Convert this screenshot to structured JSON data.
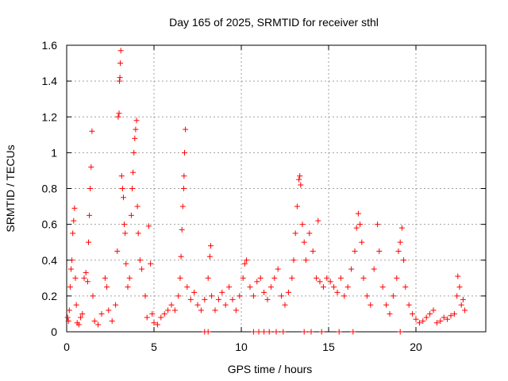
{
  "chart_data": {
    "type": "scatter",
    "title": "Day 165 of 2025, SRMTID for receiver sthl",
    "xlabel": "GPS time / hours",
    "ylabel": "SRMTID / TECUs",
    "xlim": [
      0,
      24
    ],
    "ylim": [
      0,
      1.6
    ],
    "xticks": [
      "0",
      "5",
      "10",
      "15",
      "20"
    ],
    "xtick_values": [
      0,
      5,
      10,
      15,
      20
    ],
    "yticks": [
      "0",
      "0.2",
      "0.4",
      "0.6",
      "0.8",
      "1",
      "1.2",
      "1.4",
      "1.6"
    ],
    "ytick_values": [
      0,
      0.2,
      0.4,
      0.6,
      0.8,
      1.0,
      1.2,
      1.4,
      1.6
    ],
    "grid": true,
    "marker": "+",
    "series": [
      {
        "name": "SRMTID",
        "color": "#ff0000",
        "points": [
          [
            0.05,
            0.08
          ],
          [
            0.1,
            0.06
          ],
          [
            0.15,
            0.12
          ],
          [
            0.2,
            0.25
          ],
          [
            0.25,
            0.35
          ],
          [
            0.3,
            0.4
          ],
          [
            0.35,
            0.55
          ],
          [
            0.4,
            0.62
          ],
          [
            0.45,
            0.69
          ],
          [
            0.5,
            0.3
          ],
          [
            0.55,
            0.15
          ],
          [
            0.6,
            0.05
          ],
          [
            0.7,
            0.04
          ],
          [
            0.8,
            0.08
          ],
          [
            0.9,
            0.1
          ],
          [
            1.0,
            0.3
          ],
          [
            1.1,
            0.33
          ],
          [
            1.2,
            0.28
          ],
          [
            1.25,
            0.5
          ],
          [
            1.3,
            0.65
          ],
          [
            1.35,
            0.8
          ],
          [
            1.4,
            0.92
          ],
          [
            1.45,
            1.12
          ],
          [
            1.5,
            0.2
          ],
          [
            1.6,
            0.06
          ],
          [
            1.8,
            0.04
          ],
          [
            2.0,
            0.1
          ],
          [
            2.2,
            0.3
          ],
          [
            2.3,
            0.25
          ],
          [
            2.4,
            0.12
          ],
          [
            2.6,
            0.06
          ],
          [
            2.8,
            0.15
          ],
          [
            2.9,
            0.45
          ],
          [
            2.95,
            1.2
          ],
          [
            3.0,
            1.22
          ],
          [
            3.02,
            1.4
          ],
          [
            3.05,
            1.42
          ],
          [
            3.07,
            1.5
          ],
          [
            3.1,
            1.57
          ],
          [
            3.15,
            0.87
          ],
          [
            3.2,
            0.8
          ],
          [
            3.25,
            0.75
          ],
          [
            3.3,
            0.6
          ],
          [
            3.35,
            0.55
          ],
          [
            3.4,
            0.38
          ],
          [
            3.5,
            0.25
          ],
          [
            3.6,
            0.3
          ],
          [
            3.7,
            0.65
          ],
          [
            3.75,
            0.8
          ],
          [
            3.8,
            0.89
          ],
          [
            3.85,
            1.0
          ],
          [
            3.9,
            1.08
          ],
          [
            3.95,
            1.13
          ],
          [
            4.0,
            1.18
          ],
          [
            4.05,
            0.7
          ],
          [
            4.1,
            0.55
          ],
          [
            4.2,
            0.4
          ],
          [
            4.3,
            0.35
          ],
          [
            4.5,
            0.2
          ],
          [
            4.6,
            0.08
          ],
          [
            4.7,
            0.59
          ],
          [
            4.8,
            0.38
          ],
          [
            4.9,
            0.1
          ],
          [
            5.0,
            0.05
          ],
          [
            5.2,
            0.04
          ],
          [
            5.4,
            0.08
          ],
          [
            5.6,
            0.1
          ],
          [
            5.8,
            0.12
          ],
          [
            6.0,
            0.15
          ],
          [
            6.2,
            0.12
          ],
          [
            6.4,
            0.2
          ],
          [
            6.5,
            0.3
          ],
          [
            6.55,
            0.42
          ],
          [
            6.6,
            0.57
          ],
          [
            6.65,
            0.7
          ],
          [
            6.7,
            0.8
          ],
          [
            6.72,
            0.87
          ],
          [
            6.75,
            1.0
          ],
          [
            6.8,
            1.13
          ],
          [
            6.9,
            0.25
          ],
          [
            7.1,
            0.18
          ],
          [
            7.3,
            0.22
          ],
          [
            7.5,
            0.15
          ],
          [
            7.7,
            0.12
          ],
          [
            7.9,
            0.18
          ],
          [
            8.1,
            0.3
          ],
          [
            8.2,
            0.42
          ],
          [
            8.25,
            0.48
          ],
          [
            8.3,
            0.2
          ],
          [
            8.5,
            0.12
          ],
          [
            8.7,
            0.18
          ],
          [
            8.9,
            0.22
          ],
          [
            9.1,
            0.15
          ],
          [
            9.3,
            0.25
          ],
          [
            9.5,
            0.18
          ],
          [
            9.7,
            0.12
          ],
          [
            9.9,
            0.2
          ],
          [
            10.1,
            0.3
          ],
          [
            10.2,
            0.38
          ],
          [
            10.3,
            0.4
          ],
          [
            10.5,
            0.25
          ],
          [
            10.7,
            0.2
          ],
          [
            10.9,
            0.28
          ],
          [
            11.1,
            0.3
          ],
          [
            11.3,
            0.22
          ],
          [
            11.5,
            0.18
          ],
          [
            11.7,
            0.25
          ],
          [
            11.9,
            0.3
          ],
          [
            12.1,
            0.35
          ],
          [
            12.3,
            0.2
          ],
          [
            12.5,
            0.15
          ],
          [
            12.7,
            0.22
          ],
          [
            12.9,
            0.3
          ],
          [
            13.0,
            0.4
          ],
          [
            13.1,
            0.55
          ],
          [
            13.2,
            0.7
          ],
          [
            13.3,
            0.85
          ],
          [
            13.35,
            0.87
          ],
          [
            13.4,
            0.82
          ],
          [
            13.5,
            0.6
          ],
          [
            13.6,
            0.5
          ],
          [
            13.7,
            0.4
          ],
          [
            13.9,
            0.55
          ],
          [
            14.1,
            0.45
          ],
          [
            14.3,
            0.3
          ],
          [
            14.4,
            0.62
          ],
          [
            14.5,
            0.28
          ],
          [
            14.7,
            0.25
          ],
          [
            14.9,
            0.3
          ],
          [
            15.1,
            0.28
          ],
          [
            15.3,
            0.25
          ],
          [
            15.5,
            0.22
          ],
          [
            15.7,
            0.3
          ],
          [
            15.9,
            0.2
          ],
          [
            16.1,
            0.25
          ],
          [
            16.3,
            0.35
          ],
          [
            16.5,
            0.45
          ],
          [
            16.6,
            0.58
          ],
          [
            16.7,
            0.66
          ],
          [
            16.8,
            0.6
          ],
          [
            16.9,
            0.5
          ],
          [
            17.0,
            0.3
          ],
          [
            17.2,
            0.2
          ],
          [
            17.4,
            0.15
          ],
          [
            17.6,
            0.35
          ],
          [
            17.8,
            0.6
          ],
          [
            17.9,
            0.45
          ],
          [
            18.1,
            0.25
          ],
          [
            18.3,
            0.15
          ],
          [
            18.5,
            0.1
          ],
          [
            18.7,
            0.2
          ],
          [
            18.9,
            0.3
          ],
          [
            19.0,
            0.45
          ],
          [
            19.1,
            0.5
          ],
          [
            19.2,
            0.58
          ],
          [
            19.3,
            0.4
          ],
          [
            19.4,
            0.25
          ],
          [
            19.6,
            0.15
          ],
          [
            19.8,
            0.1
          ],
          [
            20.0,
            0.07
          ],
          [
            20.2,
            0.05
          ],
          [
            20.4,
            0.06
          ],
          [
            20.6,
            0.08
          ],
          [
            20.8,
            0.1
          ],
          [
            21.0,
            0.12
          ],
          [
            21.2,
            0.05
          ],
          [
            21.4,
            0.06
          ],
          [
            21.6,
            0.08
          ],
          [
            21.8,
            0.07
          ],
          [
            22.0,
            0.09
          ],
          [
            22.2,
            0.1
          ],
          [
            22.35,
            0.2
          ],
          [
            22.4,
            0.31
          ],
          [
            22.5,
            0.25
          ],
          [
            22.6,
            0.15
          ],
          [
            22.7,
            0.18
          ],
          [
            22.8,
            0.12
          ],
          [
            10.7,
            0.0
          ],
          [
            11.0,
            0.0
          ],
          [
            11.3,
            0.0
          ],
          [
            11.6,
            0.0
          ],
          [
            12.0,
            0.0
          ],
          [
            12.4,
            0.0
          ],
          [
            13.6,
            0.0
          ],
          [
            14.0,
            0.0
          ],
          [
            14.6,
            0.0
          ],
          [
            15.6,
            0.0
          ],
          [
            16.4,
            0.0
          ],
          [
            8.1,
            0.0
          ],
          [
            7.9,
            0.0
          ],
          [
            19.1,
            0.0
          ]
        ]
      }
    ]
  }
}
